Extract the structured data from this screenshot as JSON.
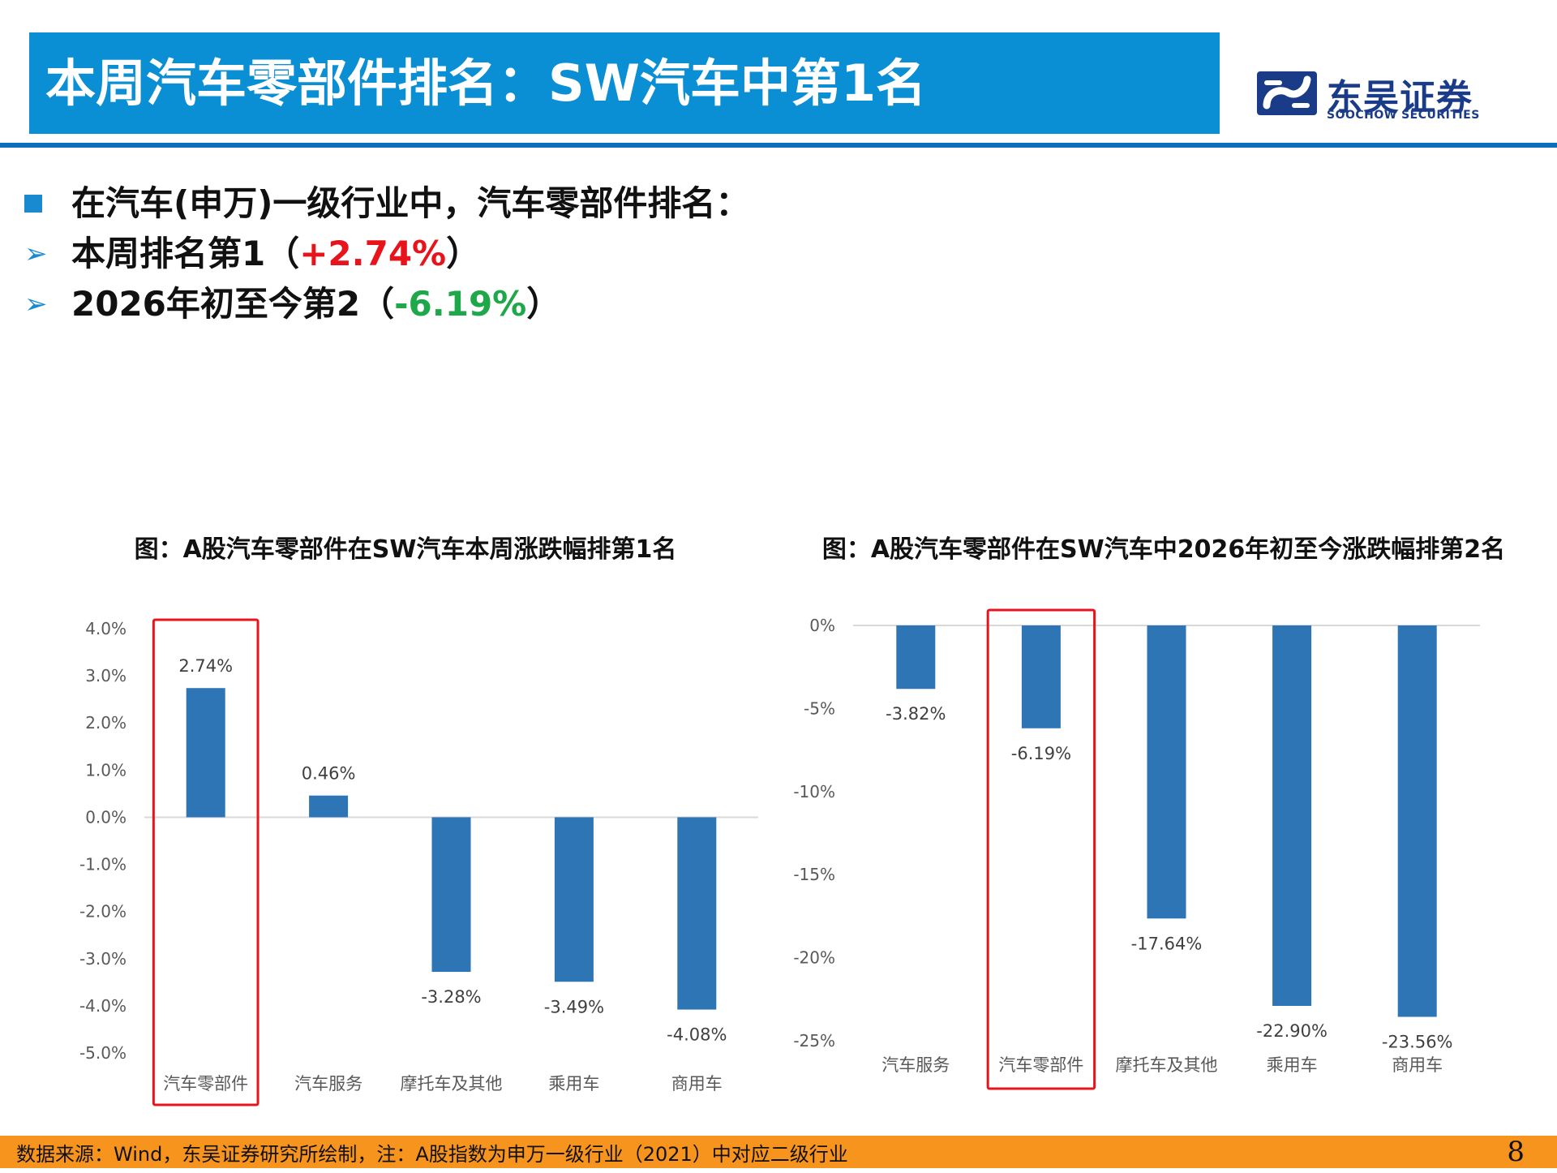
{
  "header": {
    "title": "本周汽车零部件排名：SW汽车中第1名",
    "logo_cn": "东吴证券",
    "logo_en": "SOOCHOW SECURITIES",
    "brand_color": "#0b8fd4"
  },
  "bullets": {
    "intro": "在汽车(申万)一级行业中，汽车零部件排名：",
    "week_prefix": "本周排名第1（",
    "week_value": "+2.74%",
    "week_suffix": "）",
    "ytd_prefix": "2026年初至今第2（",
    "ytd_value": "-6.19%",
    "ytd_suffix": "）"
  },
  "chart_data": [
    {
      "type": "bar",
      "title": "图：A股汽车零部件在SW汽车本周涨跌幅排第1名",
      "categories": [
        "汽车零部件",
        "汽车服务",
        "摩托车及其他",
        "乘用车",
        "商用车"
      ],
      "values": [
        2.74,
        0.46,
        -3.28,
        -3.49,
        -4.08
      ],
      "data_labels": [
        "2.74%",
        "0.46%",
        "-3.28%",
        "-3.49%",
        "-4.08%"
      ],
      "ylim": [
        -5.0,
        4.0
      ],
      "yticks": [
        4.0,
        3.0,
        2.0,
        1.0,
        0.0,
        -1.0,
        -2.0,
        -3.0,
        -4.0,
        -5.0
      ],
      "ytick_labels": [
        "4.0%",
        "3.0%",
        "2.0%",
        "1.0%",
        "0.0%",
        "-1.0%",
        "-2.0%",
        "-3.0%",
        "-4.0%",
        "-5.0%"
      ],
      "highlight_category": "汽车零部件",
      "bar_color": "#2e75b6",
      "highlight_color": "#e8141c",
      "grid": false
    },
    {
      "type": "bar",
      "title": "图：A股汽车零部件在SW汽车中2026年初至今涨跌幅排第2名",
      "categories": [
        "汽车服务",
        "汽车零部件",
        "摩托车及其他",
        "乘用车",
        "商用车"
      ],
      "values": [
        -3.82,
        -6.19,
        -17.64,
        -22.9,
        -23.56
      ],
      "data_labels": [
        "-3.82%",
        "-6.19%",
        "-17.64%",
        "-22.90%",
        "-23.56%"
      ],
      "ylim": [
        -25,
        0
      ],
      "yticks": [
        0,
        -5,
        -10,
        -15,
        -20,
        -25
      ],
      "ytick_labels": [
        "0%",
        "-5%",
        "-10%",
        "-15%",
        "-20%",
        "-25%"
      ],
      "highlight_category": "汽车零部件",
      "bar_color": "#2e75b6",
      "highlight_color": "#e8141c",
      "grid": false
    }
  ],
  "footer": {
    "source": "数据来源：Wind，东吴证券研究所绘制，注：A股指数为申万一级行业（2021）中对应二级行业",
    "page": "8"
  }
}
